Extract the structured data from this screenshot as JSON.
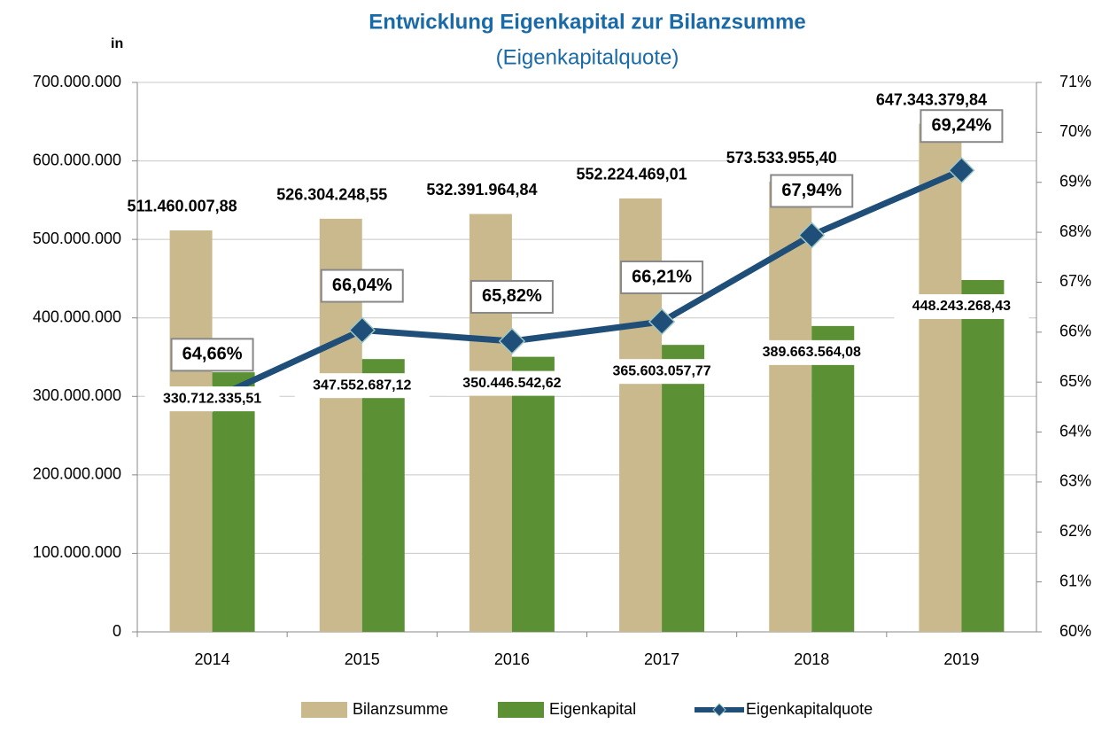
{
  "chart_data": {
    "type": "bar",
    "title": "Entwicklung Eigenkapital zur Bilanzsumme",
    "subtitle": "(Eigenkapitalquote)",
    "y_label": "in",
    "categories": [
      "2014",
      "2015",
      "2016",
      "2017",
      "2018",
      "2019"
    ],
    "series": [
      {
        "name": "Bilanzsumme",
        "color": "#c9b98c",
        "values": [
          511460007.88,
          526304248.55,
          532391964.84,
          552224469.01,
          573533955.4,
          647343379.84
        ],
        "value_labels": [
          "511.460.007,88",
          "526.304.248,55",
          "532.391.964,84",
          "552.224.469,01",
          "573.533.955,40",
          "647.343.379,84"
        ]
      },
      {
        "name": "Eigenkapital",
        "color": "#5b9134",
        "values": [
          330712335.51,
          347552687.12,
          350446542.62,
          365603057.77,
          389663564.08,
          448243268.43
        ],
        "value_labels": [
          "330.712.335,51",
          "347.552.687,12",
          "350.446.542,62",
          "365.603.057,77",
          "389.663.564,08",
          "448.243.268,43"
        ]
      },
      {
        "name": "Eigenkapitalquote",
        "type": "line",
        "axis": "y2",
        "color": "#1f4e79",
        "values": [
          64.66,
          66.04,
          65.82,
          66.21,
          67.94,
          69.24
        ],
        "value_labels": [
          "64,66%",
          "66,04%",
          "65,82%",
          "66,21%",
          "67,94%",
          "69,24%"
        ]
      }
    ],
    "ylim": [
      0,
      700000000
    ],
    "yticks": [
      0,
      {
        "value": 100000000,
        "label": "100.000.000"
      },
      {
        "value": 200000000,
        "label": "200.000.000"
      },
      {
        "value": 300000000,
        "label": "300.000.000"
      },
      {
        "value": 400000000,
        "label": "400.000.000"
      },
      {
        "value": 500000000,
        "label": "500.000.000"
      },
      {
        "value": 600000000,
        "label": "600.000.000"
      },
      {
        "value": 700000000,
        "label": "700.000.000"
      }
    ],
    "y2lim": [
      60,
      71
    ],
    "y2ticks": [
      {
        "value": 60,
        "label": "60%"
      },
      {
        "value": 61,
        "label": "61%"
      },
      {
        "value": 62,
        "label": "62%"
      },
      {
        "value": 63,
        "label": "63%"
      },
      {
        "value": 64,
        "label": "64%"
      },
      {
        "value": 65,
        "label": "65%"
      },
      {
        "value": 66,
        "label": "66%"
      },
      {
        "value": 67,
        "label": "67%"
      },
      {
        "value": 68,
        "label": "68%"
      },
      {
        "value": 69,
        "label": "69%"
      },
      {
        "value": 70,
        "label": "70%"
      },
      {
        "value": 71,
        "label": "71%"
      }
    ],
    "grid": true
  }
}
